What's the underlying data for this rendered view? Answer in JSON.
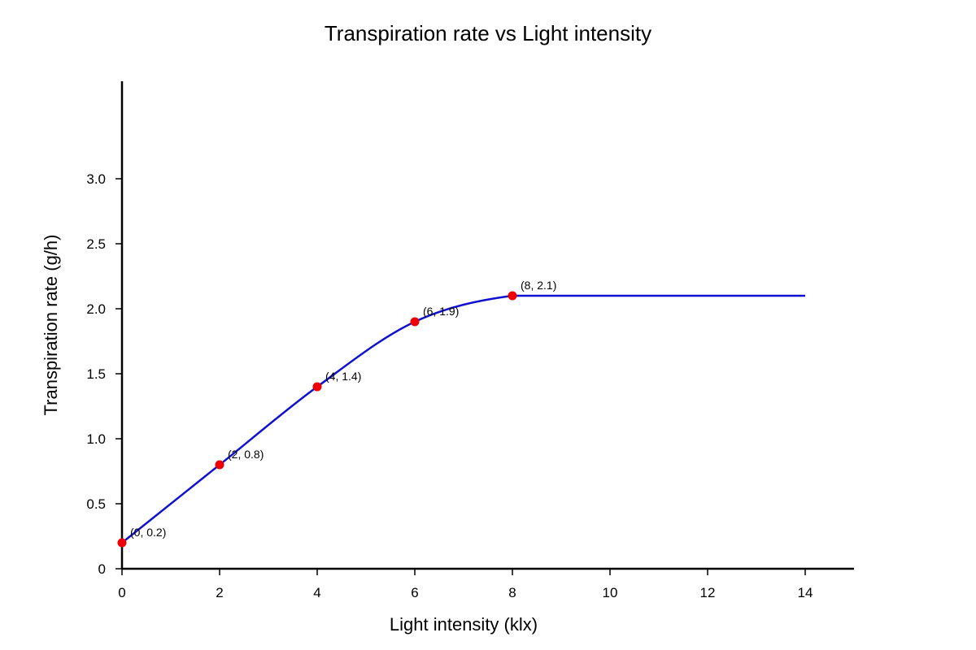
{
  "chart_data": {
    "type": "line",
    "title": "Transpiration rate vs Light intensity",
    "xlabel": "Light intensity (klx)",
    "ylabel": "Transpiration rate (g/h)",
    "xlim": [
      0,
      15
    ],
    "ylim": [
      0,
      3.75
    ],
    "x_ticks": [
      0,
      2,
      4,
      6,
      8,
      10,
      12,
      14
    ],
    "y_ticks": [
      0,
      0.5,
      1.0,
      1.5,
      2.0,
      2.5,
      3.0
    ],
    "x_tick_labels": [
      "0",
      "2",
      "4",
      "6",
      "8",
      "10",
      "12",
      "14"
    ],
    "y_tick_labels": [
      "0",
      "0.5",
      "1.0",
      "1.5",
      "2.0",
      "2.5",
      "3.0"
    ],
    "grid": false,
    "curve_color": "#1010d0",
    "point_color": "#ee0000",
    "points": [
      {
        "x": 0,
        "y": 0.2,
        "label": "(0, 0.2)"
      },
      {
        "x": 2,
        "y": 0.8,
        "label": "(2, 0.8)"
      },
      {
        "x": 4,
        "y": 1.4,
        "label": "(4, 1.4)"
      },
      {
        "x": 6,
        "y": 1.9,
        "label": "(6, 1.9)"
      },
      {
        "x": 8,
        "y": 2.1,
        "label": "(8, 2.1)"
      }
    ],
    "plateau": {
      "x": 14,
      "y": 2.1
    }
  }
}
